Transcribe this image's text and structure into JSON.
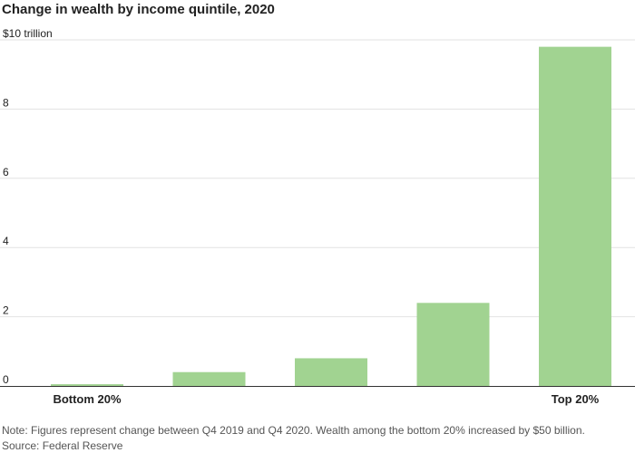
{
  "title": "Change in wealth by income quintile, 2020",
  "note": "Note: Figures represent change between Q4 2019 and Q4 2020. Wealth among the bottom 20% increased by $50 billion.",
  "source": "Source: Federal Reserve",
  "colors": {
    "bar": "#a1d391",
    "grid": "#e2e2e2",
    "axis": "#333333",
    "text": "#222222",
    "muted": "#555555"
  },
  "chart_data": {
    "type": "bar",
    "title": "Change in wealth by income quintile, 2020",
    "xlabel": "",
    "ylabel": "",
    "categories": [
      "Bottom 20%",
      "",
      "",
      "",
      "Top 20%"
    ],
    "values": [
      0.05,
      0.4,
      0.8,
      2.4,
      9.8
    ],
    "ylim": [
      0,
      10
    ],
    "yticks": [
      0,
      2,
      4,
      6,
      8,
      10
    ],
    "ytick_labels": [
      "0",
      "2",
      "4",
      "6",
      "8",
      "$10 trillion"
    ],
    "grid": true,
    "legend": "none"
  }
}
